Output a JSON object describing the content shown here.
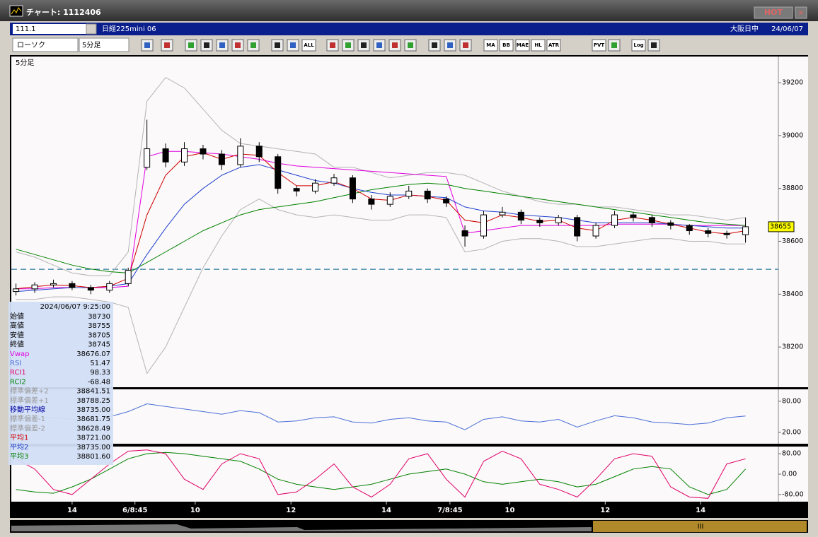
{
  "window": {
    "title": "チャート: 1112406",
    "hot": "HOT"
  },
  "toolbar": {
    "code": "111.1",
    "name": "日経225mini 06",
    "session": "大阪日中",
    "date": "24/06/07",
    "chart_style": "ローソク",
    "period": "5分足",
    "buttons": [
      "ALL",
      "MA",
      "BB",
      "MAE",
      "HL",
      "ATR",
      "PVT",
      "Log"
    ]
  },
  "info": {
    "datetime": "2024/06/07 9:25:00",
    "rows": [
      {
        "label": "始値",
        "value": "38730",
        "color": "#000000"
      },
      {
        "label": "高値",
        "value": "38755",
        "color": "#000000"
      },
      {
        "label": "安値",
        "value": "38705",
        "color": "#000000"
      },
      {
        "label": "終値",
        "value": "38745",
        "color": "#000000"
      },
      {
        "label": "Vwap",
        "value": "38676.07",
        "color": "#e000e0"
      },
      {
        "label": "RSI",
        "value": "51.47",
        "color": "#4a6fd8"
      },
      {
        "label": "RCI1",
        "value": "98.33",
        "color": "#e0006a"
      },
      {
        "label": "RCI2",
        "value": "-68.48",
        "color": "#008000"
      },
      {
        "label": "標準偏差+2",
        "value": "38841.51",
        "color": "#9a9a9a"
      },
      {
        "label": "標準偏差+1",
        "value": "38788.25",
        "color": "#9a9a9a"
      },
      {
        "label": "移動平均線",
        "value": "38735.00",
        "color": "#0000a0"
      },
      {
        "label": "標準偏差-1",
        "value": "38681.75",
        "color": "#9a9a9a"
      },
      {
        "label": "標準偏差-2",
        "value": "38628.49",
        "color": "#9a9a9a"
      },
      {
        "label": "平均1",
        "value": "38721.00",
        "color": "#d00000"
      },
      {
        "label": "平均2",
        "value": "38735.00",
        "color": "#2040d0"
      },
      {
        "label": "平均3",
        "value": "38801.60",
        "color": "#008000"
      }
    ]
  },
  "chart_data": [
    {
      "type": "candlestick",
      "label": "5分足",
      "xlim": [
        -0.25,
        40
      ],
      "ylim": [
        38048,
        39299
      ],
      "yticks": [
        38200,
        38400,
        38600,
        38800,
        39000,
        39200
      ],
      "open": [
        38410,
        38420,
        38435,
        38440,
        38425,
        38415,
        38440,
        38880,
        38950,
        38900,
        38950,
        38930,
        38890,
        38960,
        38920,
        38800,
        38790,
        38820,
        38840,
        38760,
        38740,
        38770,
        38790,
        38760,
        38640,
        38620,
        38700,
        38710,
        38680,
        38670,
        38690,
        38620,
        38660,
        38700,
        38690,
        38670,
        38660,
        38640,
        38630,
        38625
      ],
      "high": [
        38440,
        38445,
        38455,
        38450,
        38435,
        38450,
        38500,
        39060,
        38970,
        38975,
        38965,
        38945,
        38990,
        38975,
        38930,
        38810,
        38835,
        38855,
        38850,
        38775,
        38785,
        38810,
        38800,
        38770,
        38660,
        38715,
        38730,
        38720,
        38690,
        38700,
        38700,
        38670,
        38715,
        38710,
        38700,
        38680,
        38665,
        38650,
        38640,
        38690
      ],
      "low": [
        38395,
        38405,
        38425,
        38415,
        38400,
        38405,
        38430,
        38870,
        38880,
        38885,
        38910,
        38870,
        38880,
        38900,
        38780,
        38770,
        38780,
        38810,
        38745,
        38720,
        38730,
        38760,
        38745,
        38730,
        38580,
        38610,
        38690,
        38665,
        38655,
        38660,
        38600,
        38610,
        38650,
        38675,
        38655,
        38645,
        38625,
        38615,
        38610,
        38595
      ],
      "close": [
        38420,
        38435,
        38440,
        38425,
        38415,
        38440,
        38490,
        38950,
        38900,
        38950,
        38930,
        38890,
        38960,
        38920,
        38800,
        38790,
        38820,
        38840,
        38760,
        38740,
        38770,
        38790,
        38760,
        38745,
        38620,
        38700,
        38710,
        38680,
        38670,
        38690,
        38620,
        38660,
        38700,
        38690,
        38670,
        38660,
        38640,
        38630,
        38625,
        38655
      ],
      "lines": [
        {
          "color": "#b4b4b4",
          "values": [
            38560,
            38540,
            38510,
            38480,
            38470,
            38470,
            38560,
            39130,
            39220,
            39180,
            39100,
            39020,
            38970,
            38960,
            38950,
            38940,
            38930,
            38880,
            38880,
            38860,
            38840,
            38850,
            38860,
            38860,
            38850,
            38820,
            38790,
            38770,
            38750,
            38740,
            38740,
            38730,
            38730,
            38720,
            38710,
            38700,
            38700,
            38690,
            38680,
            38690
          ]
        },
        {
          "color": "#b4b4b4",
          "values": [
            38380,
            38380,
            38390,
            38390,
            38380,
            38370,
            38350,
            38100,
            38200,
            38350,
            38500,
            38620,
            38720,
            38760,
            38720,
            38700,
            38690,
            38700,
            38690,
            38680,
            38680,
            38700,
            38700,
            38690,
            38560,
            38570,
            38600,
            38610,
            38610,
            38600,
            38580,
            38580,
            38590,
            38600,
            38610,
            38610,
            38600,
            38600,
            38590,
            38590
          ]
        },
        {
          "color": "#e000e0",
          "values": [
            38420,
            38420,
            38425,
            38425,
            38425,
            38425,
            38430,
            38920,
            38940,
            38940,
            38935,
            38930,
            38920,
            38910,
            38895,
            38885,
            38880,
            38875,
            38870,
            38865,
            38860,
            38855,
            38850,
            38845,
            38630,
            38640,
            38650,
            38660,
            38660,
            38660,
            38660,
            38660,
            38665,
            38665,
            38665,
            38665,
            38660,
            38660,
            38660,
            38660
          ]
        },
        {
          "color": "#008000",
          "values": [
            38570,
            38550,
            38530,
            38510,
            38495,
            38485,
            38480,
            38520,
            38560,
            38600,
            38640,
            38670,
            38700,
            38720,
            38730,
            38740,
            38750,
            38765,
            38780,
            38795,
            38805,
            38815,
            38820,
            38815,
            38800,
            38790,
            38780,
            38770,
            38760,
            38750,
            38740,
            38730,
            38720,
            38710,
            38700,
            38690,
            38680,
            38670,
            38665,
            38660
          ]
        },
        {
          "color": "#2040d0",
          "values": [
            38410,
            38415,
            38420,
            38425,
            38425,
            38430,
            38440,
            38550,
            38650,
            38740,
            38800,
            38850,
            38880,
            38890,
            38870,
            38850,
            38830,
            38820,
            38800,
            38785,
            38775,
            38775,
            38770,
            38765,
            38730,
            38715,
            38710,
            38700,
            38695,
            38690,
            38680,
            38670,
            38670,
            38670,
            38670,
            38665,
            38660,
            38655,
            38650,
            38650
          ]
        },
        {
          "color": "#d00000",
          "values": [
            38420,
            38428,
            38435,
            38432,
            38425,
            38430,
            38460,
            38700,
            38850,
            38920,
            38935,
            38910,
            38930,
            38925,
            38860,
            38810,
            38810,
            38825,
            38800,
            38760,
            38755,
            38775,
            38770,
            38755,
            38680,
            38670,
            38700,
            38690,
            38675,
            38680,
            38650,
            38640,
            38680,
            38690,
            38680,
            38665,
            38650,
            38635,
            38628,
            38640
          ]
        }
      ],
      "hlines": [
        {
          "value": 38494,
          "color": "#2a7aa0",
          "dashed": true
        }
      ]
    },
    {
      "type": "line",
      "xlim": [
        -0.25,
        40
      ],
      "ylim": [
        -2,
        103
      ],
      "yticks": [
        {
          "value": 20,
          "label": "20.00"
        },
        {
          "value": 80,
          "label": "80.00"
        }
      ],
      "lines": [
        {
          "color": "#4a6fd8",
          "values": [
            45,
            50,
            48,
            45,
            42,
            50,
            60,
            75,
            70,
            65,
            60,
            55,
            62,
            58,
            40,
            42,
            48,
            50,
            40,
            38,
            45,
            48,
            42,
            40,
            25,
            45,
            50,
            42,
            40,
            45,
            30,
            42,
            52,
            48,
            40,
            38,
            35,
            38,
            48,
            51.47
          ]
        }
      ]
    },
    {
      "type": "line",
      "xlim": [
        -0.25,
        40
      ],
      "ylim": [
        -108,
        108
      ],
      "yticks": [
        {
          "value": -80,
          "label": "-80.00"
        },
        {
          "value": 0,
          "label": "0.00"
        },
        {
          "value": 80,
          "label": "80.00"
        }
      ],
      "xticks": [
        {
          "value": 3.0,
          "label": "14"
        },
        {
          "value": 6.36,
          "label": "6/8:45"
        },
        {
          "value": 9.58,
          "label": "10"
        },
        {
          "value": 14.7,
          "label": "12"
        },
        {
          "value": 19.8,
          "label": "14"
        },
        {
          "value": 23.2,
          "label": "7/8:45"
        },
        {
          "value": 26.4,
          "label": "10"
        },
        {
          "value": 31.5,
          "label": "12"
        },
        {
          "value": 36.6,
          "label": "14"
        }
      ],
      "lines": [
        {
          "color": "#008000",
          "values": [
            -60,
            -70,
            -75,
            -50,
            -20,
            20,
            60,
            80,
            85,
            80,
            70,
            60,
            50,
            20,
            -20,
            -40,
            -50,
            -60,
            -50,
            -40,
            -20,
            0,
            10,
            20,
            0,
            -30,
            -40,
            -30,
            -20,
            -30,
            -50,
            -40,
            -10,
            20,
            30,
            20,
            -50,
            -80,
            -60,
            20
          ]
        },
        {
          "color": "#e0006a",
          "values": [
            60,
            20,
            -60,
            -80,
            -20,
            40,
            90,
            95,
            80,
            -20,
            -60,
            40,
            80,
            60,
            -80,
            -70,
            -20,
            40,
            -50,
            -90,
            -40,
            60,
            80,
            -20,
            -90,
            50,
            90,
            60,
            -40,
            -60,
            -90,
            -20,
            60,
            80,
            70,
            -50,
            -90,
            -95,
            40,
            60
          ]
        }
      ]
    }
  ]
}
